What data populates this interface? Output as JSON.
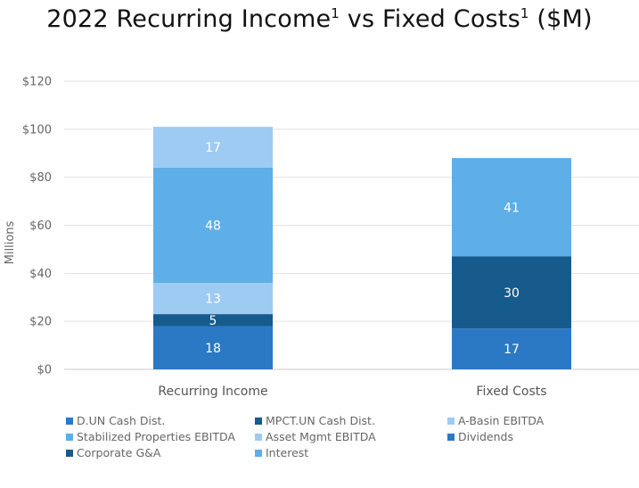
{
  "chart_data": {
    "type": "bar",
    "stacked": true,
    "title": "2022 Recurring Income",
    "title_sup": "1",
    "title_mid": " vs Fixed Costs",
    "title_sup2": "1",
    "title_end": " ($M)",
    "ylabel": "Millions",
    "ylim": [
      0,
      120
    ],
    "yticks": [
      0,
      20,
      40,
      60,
      80,
      100,
      120
    ],
    "ytick_labels": [
      "$0",
      "$20",
      "$40",
      "$60",
      "$80",
      "$100",
      "$120"
    ],
    "categories": [
      "Recurring Income",
      "Fixed Costs"
    ],
    "grid": true,
    "legend_position": "bottom",
    "series": [
      {
        "name": "D.UN Cash Dist.",
        "color": "#2b78c5",
        "values": [
          18,
          null
        ],
        "labels": [
          "18",
          ""
        ]
      },
      {
        "name": "MPCT.UN Cash Dist.",
        "color": "#175a8c",
        "values": [
          5,
          null
        ],
        "labels": [
          "5",
          ""
        ]
      },
      {
        "name": "A-Basin EBITDA",
        "color": "#9dcbf2",
        "values": [
          13,
          null
        ],
        "labels": [
          "13",
          ""
        ]
      },
      {
        "name": "Stabilized Properties EBITDA",
        "color": "#5eaee8",
        "values": [
          48,
          null
        ],
        "labels": [
          "48",
          ""
        ]
      },
      {
        "name": "Asset Mgmt EBITDA",
        "color": "#9dcbf2",
        "values": [
          17,
          null
        ],
        "labels": [
          "17",
          ""
        ]
      },
      {
        "name": "Dividends",
        "color": "#2b78c5",
        "values": [
          null,
          17
        ],
        "labels": [
          "",
          "17"
        ]
      },
      {
        "name": "Corporate G&A",
        "color": "#175a8c",
        "values": [
          null,
          30
        ],
        "labels": [
          "",
          "30"
        ]
      },
      {
        "name": "Interest",
        "color": "#5eaee8",
        "values": [
          null,
          41
        ],
        "labels": [
          "",
          "41"
        ]
      }
    ]
  }
}
